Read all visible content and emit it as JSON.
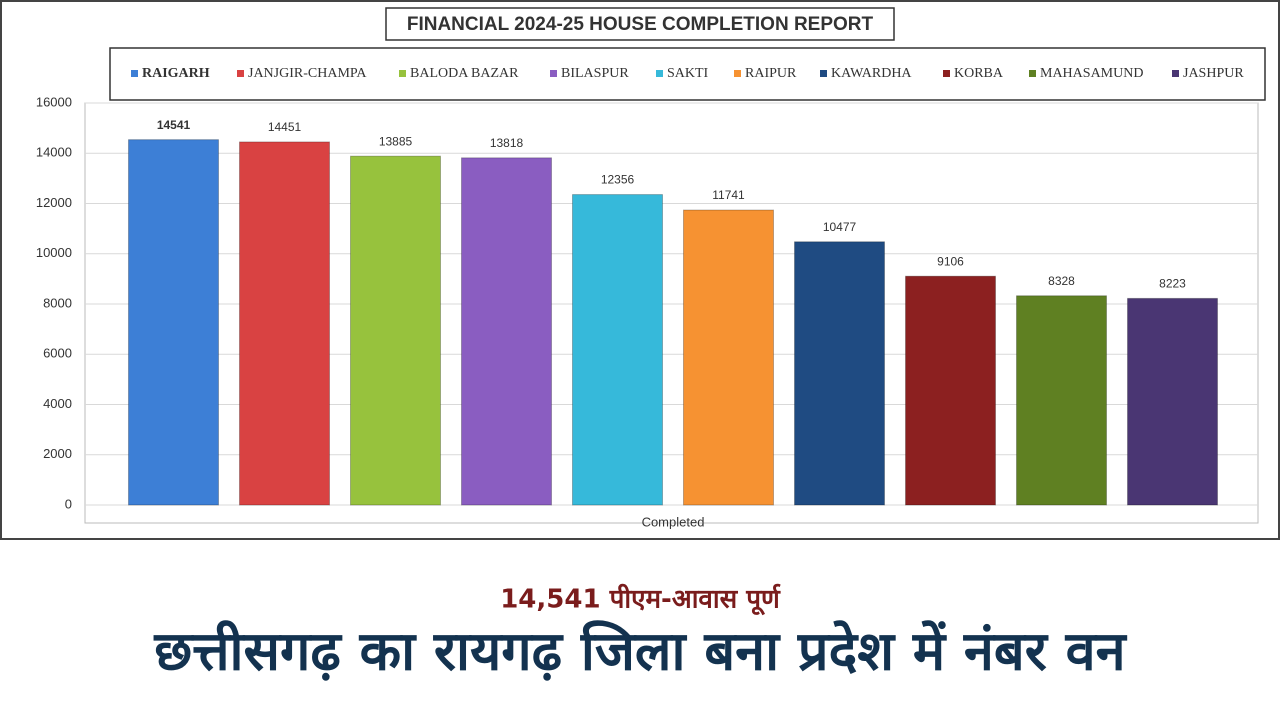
{
  "chart_data": {
    "type": "bar",
    "title": "FINANCIAL 2024-25 HOUSE COMPLETION REPORT",
    "categories": [
      "Completed"
    ],
    "series": [
      {
        "name": "RAIGARH",
        "color": "#3d7fd6",
        "values": [
          14541
        ]
      },
      {
        "name": "JANJGIR-CHAMPA",
        "color": "#d94242",
        "values": [
          14451
        ]
      },
      {
        "name": "BALODA BAZAR",
        "color": "#97c23d",
        "values": [
          13885
        ]
      },
      {
        "name": "BILASPUR",
        "color": "#8a5dc1",
        "values": [
          13818
        ]
      },
      {
        "name": "SAKTI",
        "color": "#36b9da",
        "values": [
          12356
        ]
      },
      {
        "name": "RAIPUR",
        "color": "#f69232",
        "values": [
          11741
        ]
      },
      {
        "name": "KAWARDHA",
        "color": "#1f4b82",
        "values": [
          10477
        ]
      },
      {
        "name": "KORBA",
        "color": "#8c2020",
        "values": [
          9106
        ]
      },
      {
        "name": "MAHASAMUND",
        "color": "#5f8022",
        "values": [
          8328
        ]
      },
      {
        "name": "JASHPUR",
        "color": "#4a3673",
        "values": [
          8223
        ]
      }
    ],
    "ylim": [
      0,
      16000
    ],
    "yticks": [
      0,
      2000,
      4000,
      6000,
      8000,
      10000,
      12000,
      14000,
      16000
    ],
    "grid": true,
    "legend": "top"
  },
  "caption": {
    "highlight": "14,541 पीएम-आवास पूर्ण",
    "headline": "छत्तीसगढ़ का रायगढ़ जिला बना प्रदेश में नंबर वन"
  }
}
